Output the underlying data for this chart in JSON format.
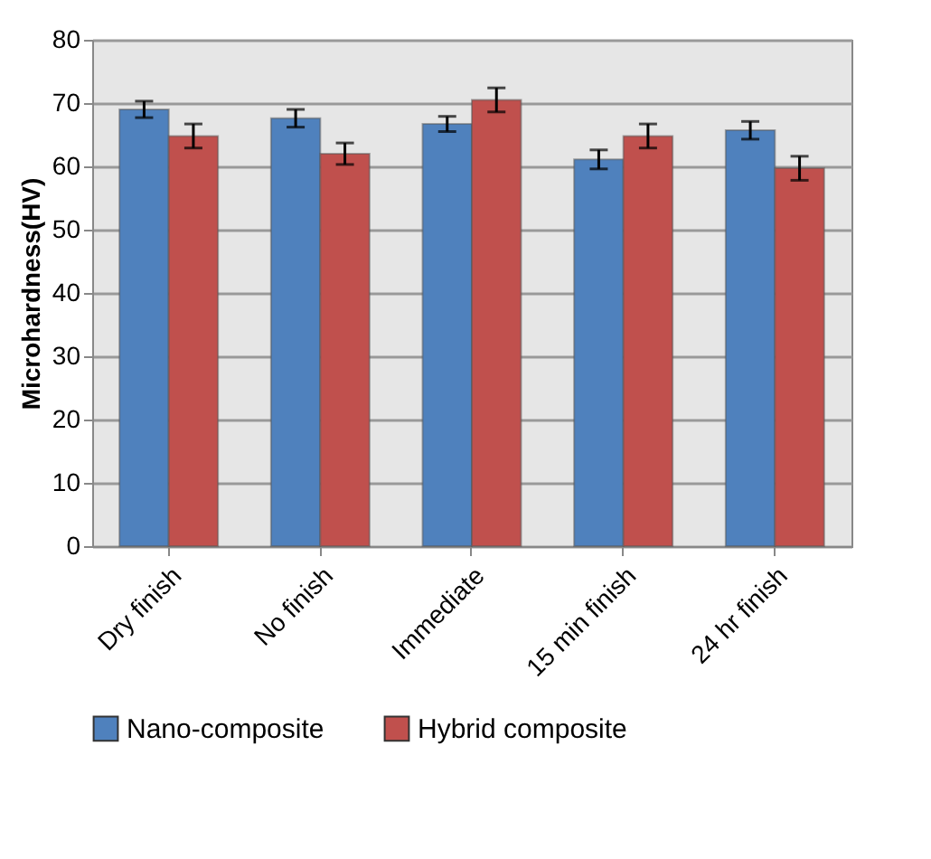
{
  "chart_data": {
    "type": "bar",
    "ylabel": "Microhardness(HV)",
    "categories": [
      "Dry finish",
      "No finish",
      "Immediate",
      "15 min finish",
      "24 hr finish"
    ],
    "series": [
      {
        "name": "Nano-composite",
        "color": "#4f81bd",
        "values": [
          69.0,
          67.6,
          66.7,
          61.1,
          65.7
        ],
        "errors": [
          1.3,
          1.4,
          1.2,
          1.5,
          1.4
        ]
      },
      {
        "name": "Hybrid composite",
        "color": "#c0504d",
        "values": [
          64.8,
          62.0,
          70.5,
          64.8,
          59.7
        ],
        "errors": [
          1.9,
          1.7,
          1.9,
          1.9,
          1.9
        ]
      }
    ],
    "ylim": [
      0,
      80
    ],
    "yticks": [
      0,
      10,
      20,
      30,
      40,
      50,
      60,
      70,
      80
    ],
    "grid": "y",
    "legend": "bottom"
  }
}
